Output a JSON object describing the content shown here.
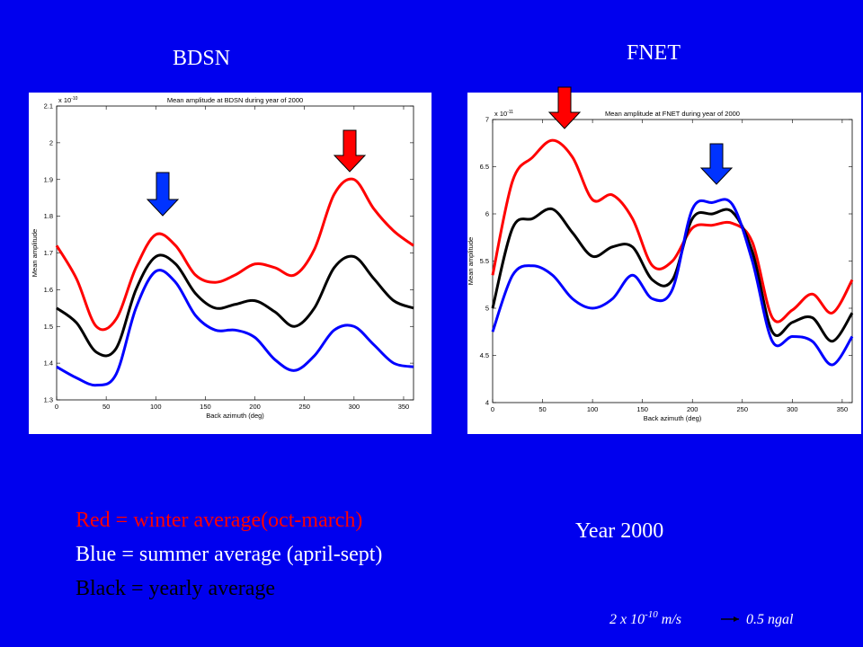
{
  "slide": {
    "left_heading": "BDSN",
    "right_heading": "FNET",
    "legend_lines": [
      "Red = winter  average(oct-march)",
      "Blue = summer average (april-sept)",
      "Black = yearly average"
    ],
    "year": "Year 2000",
    "note": {
      "prefix": "2 x 10",
      "exponent": "-10",
      "unit": " m/s",
      "result": "0.5 ngal"
    }
  },
  "chart_data": [
    {
      "type": "line",
      "title": "Mean amplitude at BDSN during year of 2000",
      "x_label": "Back azimuth (deg)",
      "y_label": "Mean amplitude",
      "y_offset": {
        "base": "x 10",
        "exponent": "-10"
      },
      "x": [
        0,
        20,
        40,
        60,
        80,
        100,
        120,
        140,
        160,
        180,
        200,
        220,
        240,
        260,
        280,
        300,
        320,
        340,
        360
      ],
      "xlim": [
        0,
        360
      ],
      "xticks": [
        0,
        50,
        100,
        150,
        200,
        250,
        300,
        350
      ],
      "ylim": [
        1.3,
        2.1
      ],
      "yticks": [
        1.3,
        1.4,
        1.5,
        1.6,
        1.7,
        1.8,
        1.9,
        2,
        2.1
      ],
      "series": [
        {
          "color": "#ff0000",
          "values": [
            1.72,
            1.63,
            1.5,
            1.52,
            1.66,
            1.75,
            1.72,
            1.64,
            1.62,
            1.64,
            1.67,
            1.66,
            1.64,
            1.71,
            1.86,
            1.9,
            1.82,
            1.76,
            1.72
          ]
        },
        {
          "color": "#000000",
          "values": [
            1.55,
            1.51,
            1.43,
            1.44,
            1.6,
            1.69,
            1.67,
            1.59,
            1.55,
            1.56,
            1.57,
            1.54,
            1.5,
            1.55,
            1.66,
            1.69,
            1.63,
            1.57,
            1.55
          ]
        },
        {
          "color": "#0000ff",
          "values": [
            1.39,
            1.36,
            1.34,
            1.37,
            1.55,
            1.65,
            1.62,
            1.53,
            1.49,
            1.49,
            1.47,
            1.41,
            1.38,
            1.42,
            1.49,
            1.5,
            1.45,
            1.4,
            1.39
          ]
        }
      ]
    },
    {
      "type": "line",
      "title": "Mean amplitude at FNET during year of 2000",
      "x_label": "Back azimuth (deg)",
      "y_label": "Mean amplitude",
      "y_offset": {
        "base": "x 10",
        "exponent": "-11"
      },
      "x": [
        0,
        20,
        40,
        60,
        80,
        100,
        120,
        140,
        160,
        180,
        200,
        220,
        240,
        260,
        280,
        300,
        320,
        340,
        360
      ],
      "xlim": [
        0,
        360
      ],
      "xticks": [
        0,
        50,
        100,
        150,
        200,
        250,
        300,
        350
      ],
      "ylim": [
        4,
        7
      ],
      "yticks": [
        4,
        4.5,
        5,
        5.5,
        6,
        6.5,
        7
      ],
      "series": [
        {
          "color": "#ff0000",
          "values": [
            5.35,
            6.35,
            6.6,
            6.78,
            6.6,
            6.15,
            6.2,
            5.95,
            5.45,
            5.5,
            5.85,
            5.88,
            5.9,
            5.7,
            4.9,
            4.98,
            5.15,
            4.95,
            5.3
          ]
        },
        {
          "color": "#000000",
          "values": [
            5.0,
            5.85,
            5.95,
            6.05,
            5.8,
            5.55,
            5.65,
            5.65,
            5.3,
            5.3,
            5.95,
            6.0,
            6.02,
            5.6,
            4.75,
            4.85,
            4.9,
            4.65,
            4.95
          ]
        },
        {
          "color": "#0000ff",
          "values": [
            4.75,
            5.35,
            5.45,
            5.35,
            5.1,
            5.0,
            5.1,
            5.35,
            5.1,
            5.2,
            6.05,
            6.12,
            6.1,
            5.5,
            4.65,
            4.7,
            4.65,
            4.4,
            4.7
          ]
        }
      ]
    }
  ]
}
